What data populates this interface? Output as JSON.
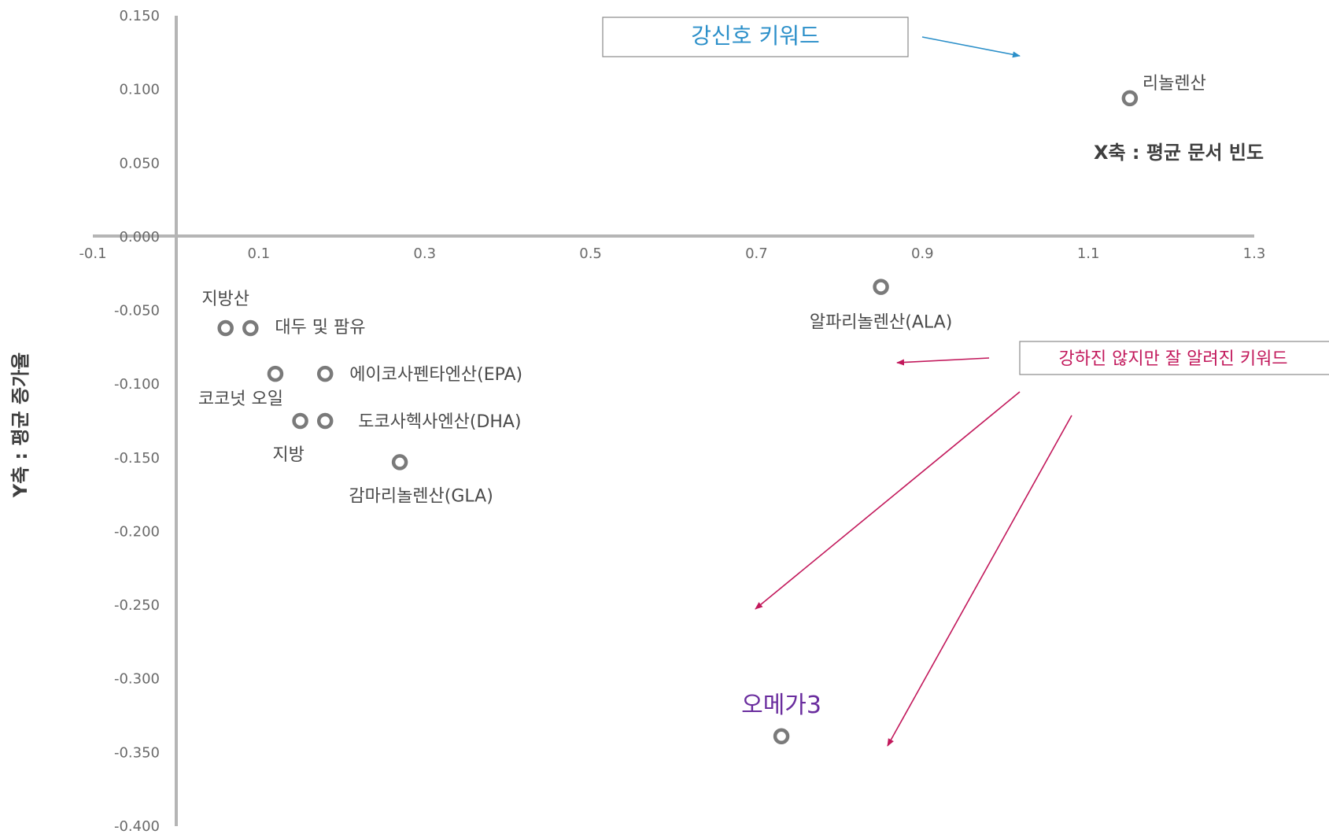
{
  "chart_data": {
    "type": "scatter",
    "title": "",
    "xlabel": "X축 : 평균 문서 빈도",
    "ylabel": "Y축 : 평균 증가율",
    "xlim": [
      -0.1,
      1.3
    ],
    "ylim": [
      -0.4,
      0.15
    ],
    "x_ticks": [
      -0.1,
      0.1,
      0.3,
      0.5,
      0.7,
      0.9,
      1.1,
      1.3
    ],
    "x_tick_labels": [
      "-0.1",
      "0.1",
      "0.3",
      "0.5",
      "0.7",
      "0.9",
      "1.1",
      "1.3"
    ],
    "y_ticks": [
      0.15,
      0.1,
      0.05,
      0.0,
      -0.05,
      -0.1,
      -0.15,
      -0.2,
      -0.25,
      -0.3,
      -0.35,
      -0.4
    ],
    "y_tick_labels": [
      "0.150",
      "0.100",
      "0.050",
      "0.000",
      "-0.050",
      "-0.100",
      "-0.150",
      "-0.200",
      "-0.250",
      "-0.300",
      "-0.350",
      "-0.400"
    ],
    "grid": false,
    "points": [
      {
        "label": "리놀렌산",
        "x": 1.15,
        "y": 0.094
      },
      {
        "label": "알파리놀렌산(ALA)",
        "x": 0.85,
        "y": -0.034
      },
      {
        "label": "지방산",
        "x": 0.06,
        "y": -0.062
      },
      {
        "label": "대두 및 팜유",
        "x": 0.09,
        "y": -0.062
      },
      {
        "label": "코코넛 오일",
        "x": 0.12,
        "y": -0.093
      },
      {
        "label": "에이코사펜타엔산(EPA)",
        "x": 0.18,
        "y": -0.093
      },
      {
        "label": "지방",
        "x": 0.15,
        "y": -0.125
      },
      {
        "label": "도코사헥사엔산(DHA)",
        "x": 0.18,
        "y": -0.125
      },
      {
        "label": "감마리놀렌산(GLA)",
        "x": 0.27,
        "y": -0.153
      },
      {
        "label": "오메가3",
        "x": 0.73,
        "y": -0.339
      }
    ],
    "annotations": [
      {
        "text": "강신호 키워드",
        "color": "#2b8fc9"
      },
      {
        "text": "강하진 않지만 잘 알려진 키워드",
        "color": "#c2185b"
      }
    ],
    "colors": {
      "axis": "#b5b5b5",
      "marker": "#7a7a7a",
      "strong_signal": "#2b8fc9",
      "weak_known": "#c2185b",
      "highlight": "#6a2d9e"
    }
  }
}
